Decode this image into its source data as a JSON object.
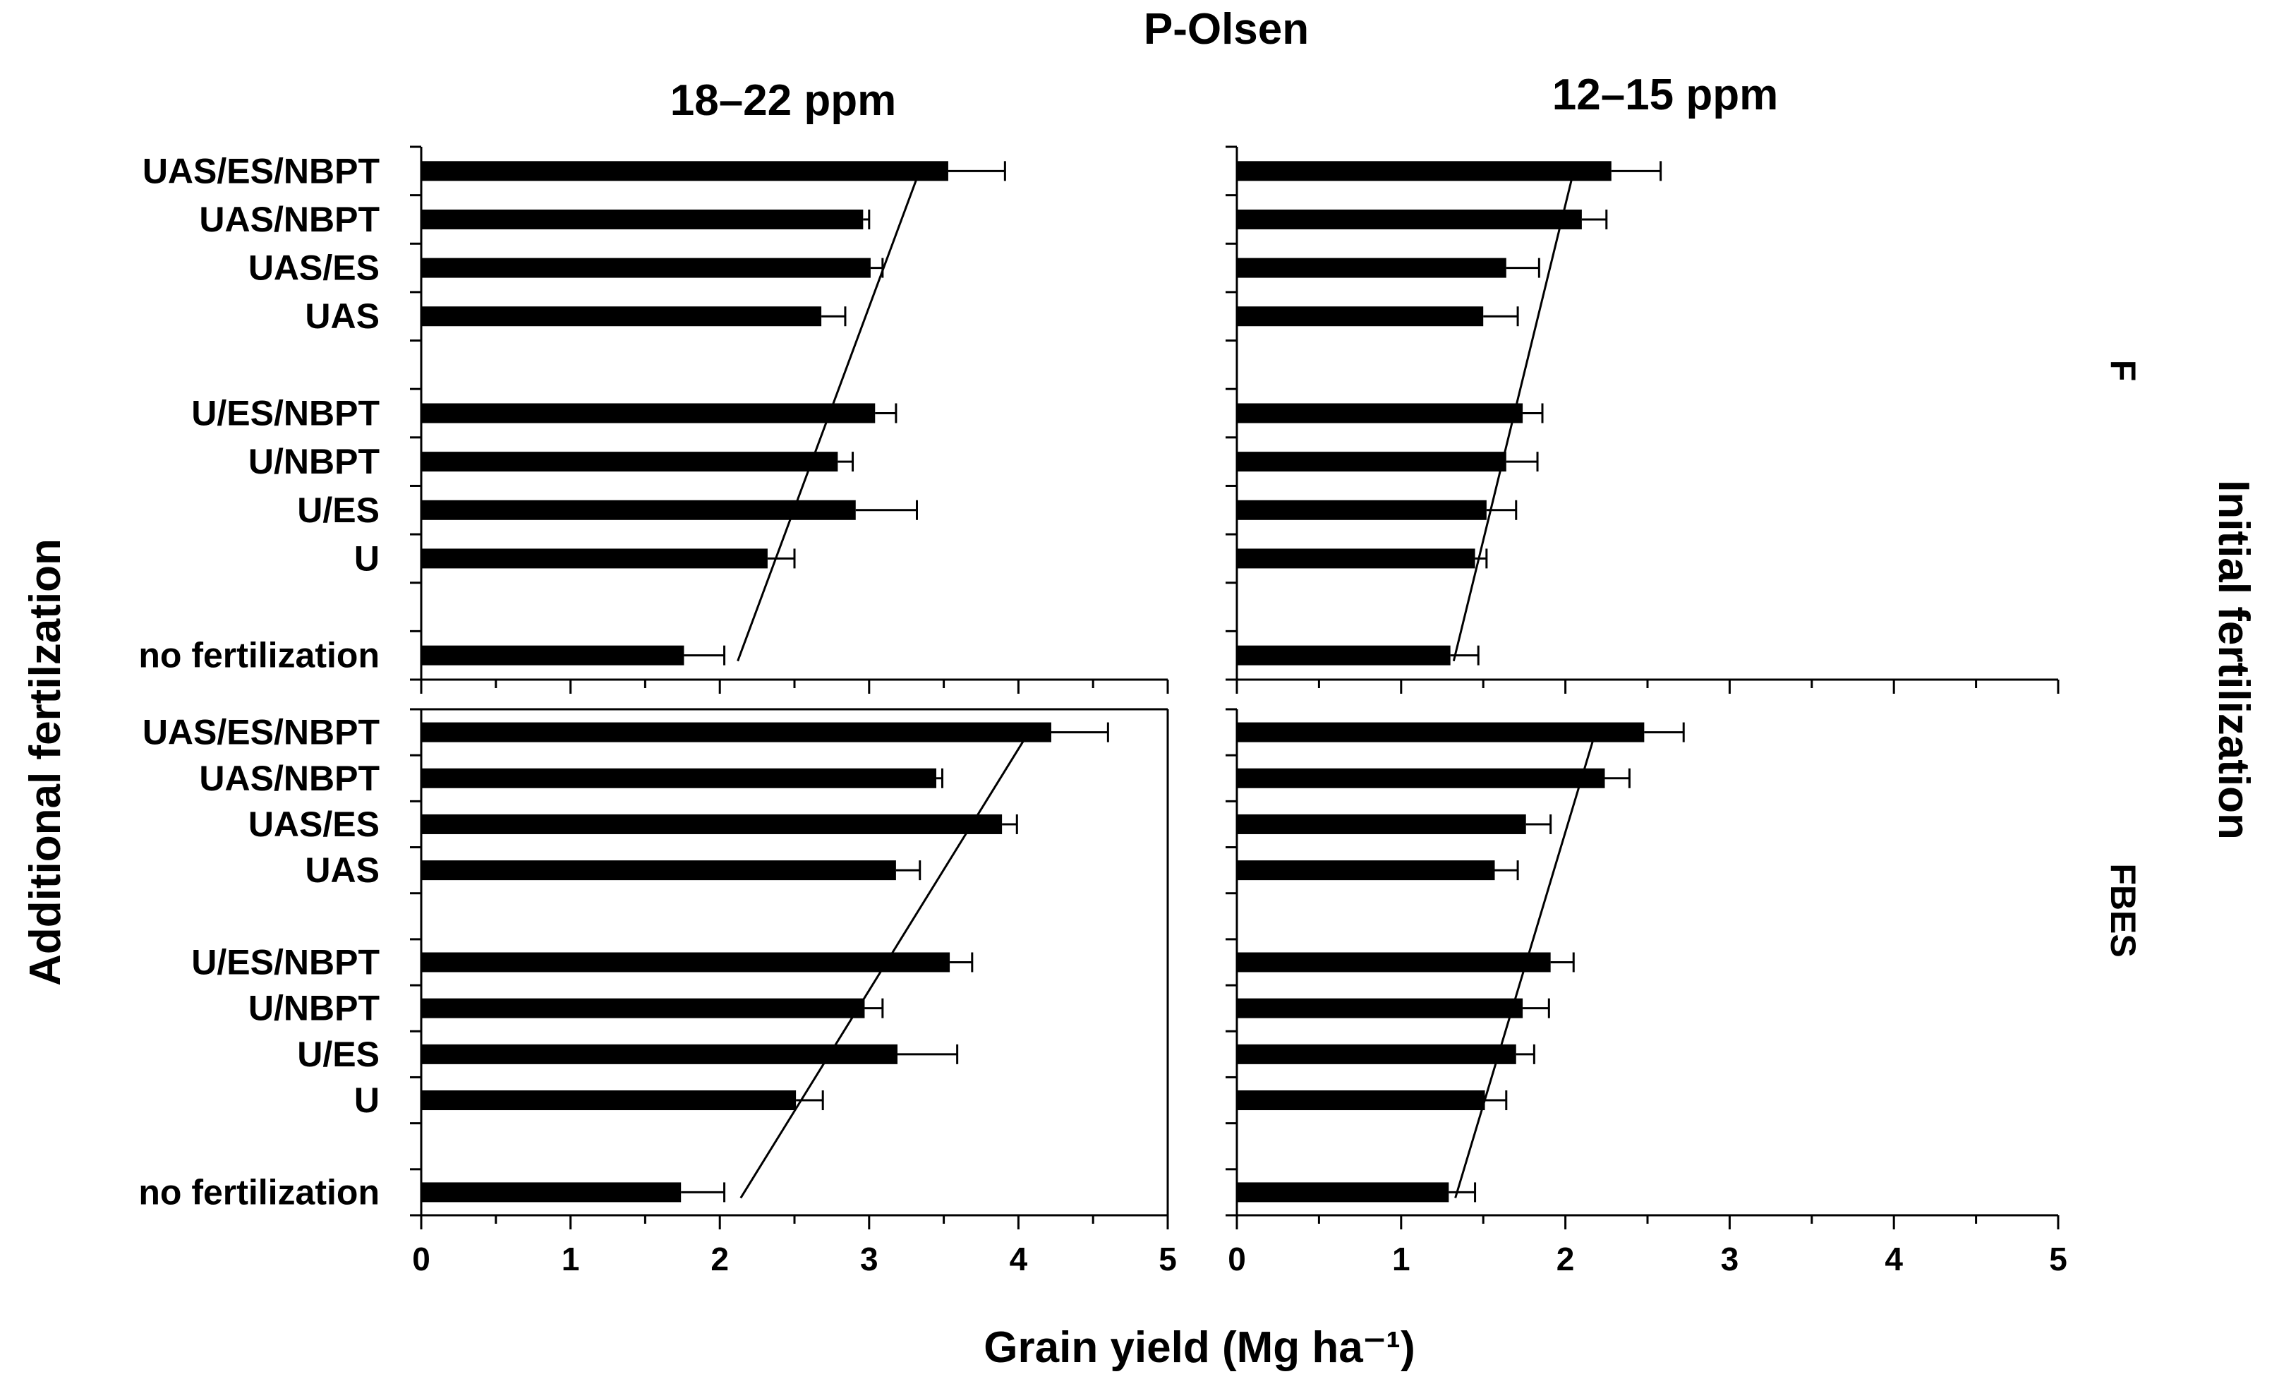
{
  "figure": {
    "title": "P-Olsen",
    "xlabel": "Grain yield (Mg ha⁻¹)",
    "ylabel_left": "Additional fertilzation",
    "ylabel_right": "Initial fertilization",
    "columns": [
      "18–22 ppm",
      "12–15 ppm"
    ],
    "rows": [
      "F",
      "FBES"
    ]
  },
  "chart_data": [
    {
      "type": "bar",
      "orientation": "horizontal",
      "title": "18–22 ppm",
      "row": "F",
      "categories": [
        "UAS/ES/NBPT",
        "UAS/NBPT",
        "UAS/ES",
        "UAS",
        "",
        "U/ES/NBPT",
        "U/NBPT",
        "U/ES",
        "U",
        "",
        "no fertilization"
      ],
      "values": [
        3.53,
        2.96,
        3.01,
        2.68,
        null,
        3.04,
        2.79,
        2.91,
        2.32,
        null,
        1.76
      ],
      "errors": [
        0.38,
        0.04,
        0.08,
        0.16,
        null,
        0.14,
        0.1,
        0.41,
        0.18,
        null,
        0.27
      ],
      "trend_line": {
        "x_start": 2.12,
        "x_end": 3.32
      },
      "xlim": [
        0,
        5
      ],
      "xticks": [
        "0",
        "1",
        "2",
        "3",
        "4",
        "5"
      ],
      "show_xtick_labels": false
    },
    {
      "type": "bar",
      "orientation": "horizontal",
      "title": "12–15 ppm",
      "row": "F",
      "categories": [
        "UAS/ES/NBPT",
        "UAS/NBPT",
        "UAS/ES",
        "UAS",
        "",
        "U/ES/NBPT",
        "U/NBPT",
        "U/ES",
        "U",
        "",
        "no fertilization"
      ],
      "values": [
        2.28,
        2.1,
        1.64,
        1.5,
        null,
        1.74,
        1.64,
        1.52,
        1.45,
        null,
        1.3
      ],
      "errors": [
        0.3,
        0.15,
        0.2,
        0.21,
        null,
        0.12,
        0.19,
        0.18,
        0.07,
        null,
        0.17
      ],
      "trend_line": {
        "x_start": 1.32,
        "x_end": 2.04
      },
      "xlim": [
        0,
        5
      ],
      "xticks": [
        "0",
        "1",
        "2",
        "3",
        "4",
        "5"
      ],
      "show_xtick_labels": false
    },
    {
      "type": "bar",
      "orientation": "horizontal",
      "title": "18–22 ppm",
      "row": "FBES",
      "categories": [
        "UAS/ES/NBPT",
        "UAS/NBPT",
        "UAS/ES",
        "UAS",
        "",
        "U/ES/NBPT",
        "U/NBPT",
        "U/ES",
        "U",
        "",
        "no fertilization"
      ],
      "values": [
        4.22,
        3.45,
        3.89,
        3.18,
        null,
        3.54,
        2.97,
        3.19,
        2.51,
        null,
        1.74
      ],
      "errors": [
        0.38,
        0.04,
        0.1,
        0.16,
        null,
        0.15,
        0.12,
        0.4,
        0.18,
        null,
        0.29
      ],
      "trend_line": {
        "x_start": 2.14,
        "x_end": 4.04
      },
      "xlim": [
        0,
        5
      ],
      "xticks": [
        "0",
        "1",
        "2",
        "3",
        "4",
        "5"
      ],
      "show_xtick_labels": true
    },
    {
      "type": "bar",
      "orientation": "horizontal",
      "title": "12–15 ppm",
      "row": "FBES",
      "categories": [
        "UAS/ES/NBPT",
        "UAS/NBPT",
        "UAS/ES",
        "UAS",
        "",
        "U/ES/NBPT",
        "U/NBPT",
        "U/ES",
        "U",
        "",
        "no fertilization"
      ],
      "values": [
        2.48,
        2.24,
        1.76,
        1.57,
        null,
        1.91,
        1.74,
        1.7,
        1.51,
        null,
        1.29
      ],
      "errors": [
        0.24,
        0.15,
        0.15,
        0.14,
        null,
        0.14,
        0.16,
        0.11,
        0.13,
        null,
        0.16
      ],
      "trend_line": {
        "x_start": 1.33,
        "x_end": 2.17
      },
      "xlim": [
        0,
        5
      ],
      "xticks": [
        "0",
        "1",
        "2",
        "3",
        "4",
        "5"
      ],
      "show_xtick_labels": true
    }
  ]
}
